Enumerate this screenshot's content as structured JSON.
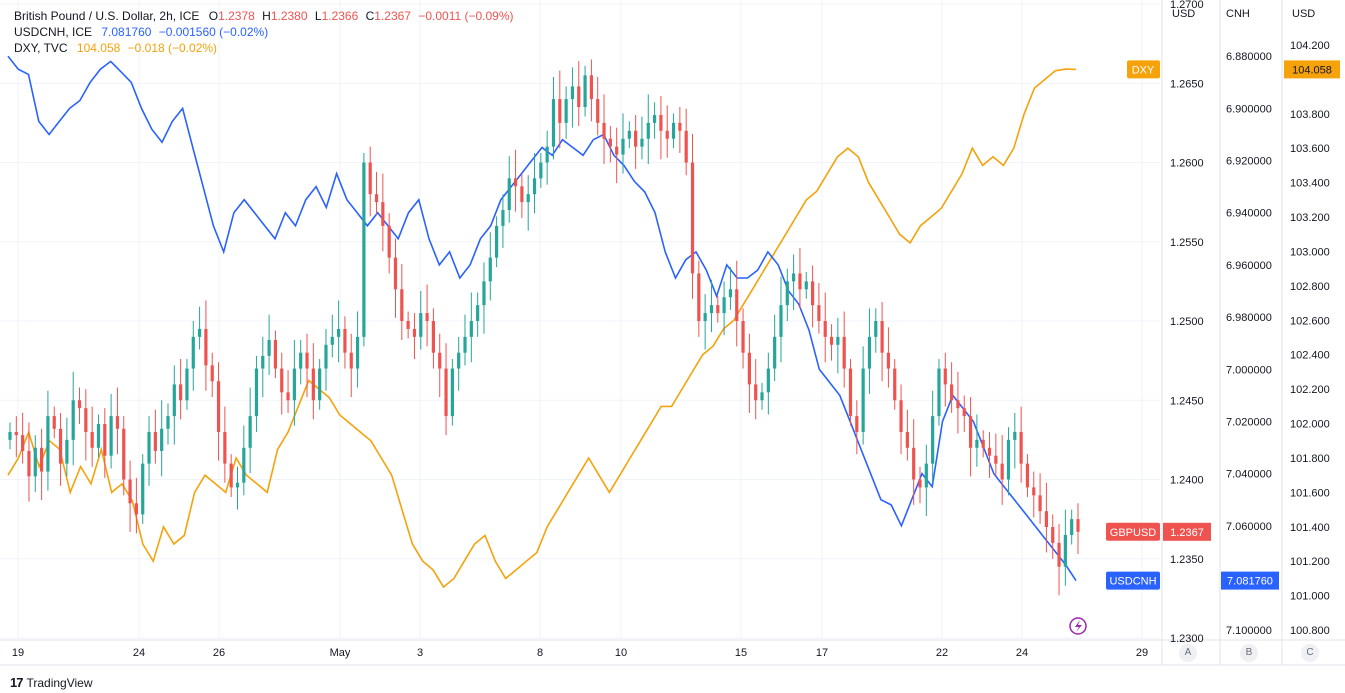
{
  "legend": [
    {
      "name": "British Pound / U.S. Dollar, 2h, ICE",
      "parts": [
        [
          "O",
          "1.2378"
        ],
        [
          "H",
          "1.2380"
        ],
        [
          "L",
          "1.2366"
        ],
        [
          "C",
          "1.2367"
        ],
        [
          "",
          "−0.0011 (−0.09%)"
        ]
      ],
      "color": "#ef5350"
    },
    {
      "name": "USDCNH, ICE",
      "parts": [
        [
          "",
          "7.081760"
        ],
        [
          "",
          "−0.001560 (−0.02%)"
        ]
      ],
      "color": "#2962ff"
    },
    {
      "name": "DXY, TVC",
      "parts": [
        [
          "",
          "104.058"
        ],
        [
          "",
          "−0.018 (−0.02%)"
        ]
      ],
      "color": "#f5a20b"
    }
  ],
  "scales": {
    "gbpusd_label": "USD",
    "cnh_label": "CNH",
    "dxy_label": "USD",
    "foot_a": "A",
    "foot_b": "B",
    "foot_c": "C"
  },
  "footer": {
    "logo": "17",
    "brand": "TradingView"
  },
  "colors": {
    "up": "#26a69a",
    "down": "#ef5350",
    "usdcnh": "#2962ff",
    "dxy": "#f5a20b",
    "grid": "#f0f3fa"
  },
  "chart_data": {
    "type": "line",
    "x_ticks": [
      "19",
      "24",
      "26",
      "May",
      "3",
      "8",
      "10",
      "15",
      "17",
      "22",
      "24",
      "29"
    ],
    "gbpusd": {
      "name": "GBPUSD",
      "type": "candlestick",
      "scale_ticks": [
        "1.2700",
        "1.2650",
        "1.2600",
        "1.2550",
        "1.2500",
        "1.2450",
        "1.2400",
        "1.2350",
        "1.2300"
      ],
      "ylim": [
        1.23,
        1.27
      ],
      "last": "1.2367",
      "close": [
        1.243,
        1.2428,
        1.2418,
        1.2402,
        1.242,
        1.2405,
        1.244,
        1.2432,
        1.241,
        1.2425,
        1.245,
        1.2445,
        1.243,
        1.242,
        1.2435,
        1.2415,
        1.244,
        1.2432,
        1.24,
        1.2385,
        1.2378,
        1.241,
        1.243,
        1.2418,
        1.2432,
        1.244,
        1.246,
        1.245,
        1.247,
        1.249,
        1.2495,
        1.2472,
        1.2462,
        1.243,
        1.241,
        1.2395,
        1.2398,
        1.242,
        1.244,
        1.247,
        1.2478,
        1.2488,
        1.247,
        1.2455,
        1.245,
        1.247,
        1.248,
        1.247,
        1.245,
        1.247,
        1.2485,
        1.249,
        1.2495,
        1.248,
        1.247,
        1.249,
        1.26,
        1.258,
        1.2575,
        1.256,
        1.254,
        1.252,
        1.25,
        1.2495,
        1.249,
        1.2505,
        1.25,
        1.248,
        1.247,
        1.244,
        1.247,
        1.248,
        1.249,
        1.25,
        1.251,
        1.2525,
        1.254,
        1.256,
        1.257,
        1.259,
        1.2585,
        1.2575,
        1.258,
        1.259,
        1.26,
        1.261,
        1.264,
        1.2625,
        1.264,
        1.2648,
        1.2635,
        1.2655,
        1.264,
        1.2625,
        1.2615,
        1.261,
        1.2605,
        1.2615,
        1.262,
        1.261,
        1.2615,
        1.2625,
        1.263,
        1.262,
        1.2615,
        1.2625,
        1.262,
        1.26,
        1.253,
        1.25,
        1.2505,
        1.251,
        1.2505,
        1.2515,
        1.252,
        1.25,
        1.248,
        1.246,
        1.245,
        1.2455,
        1.247,
        1.249,
        1.251,
        1.2525,
        1.253,
        1.252,
        1.2525,
        1.251,
        1.25,
        1.249,
        1.2485,
        1.249,
        1.247,
        1.244,
        1.243,
        1.247,
        1.249,
        1.25,
        1.248,
        1.247,
        1.245,
        1.243,
        1.242,
        1.24,
        1.2395,
        1.241,
        1.244,
        1.247,
        1.246,
        1.245,
        1.2445,
        1.244,
        1.242,
        1.2425,
        1.242,
        1.2415,
        1.241,
        1.24,
        1.2425,
        1.243,
        1.241,
        1.2395,
        1.239,
        1.238,
        1.237,
        1.236,
        1.2345,
        1.2365,
        1.2375,
        1.2367
      ]
    },
    "usdcnh": {
      "name": "USDCNH",
      "scale_ticks": [
        "6.880000",
        "6.900000",
        "6.920000",
        "6.940000",
        "6.960000",
        "6.980000",
        "7.000000",
        "7.020000",
        "7.040000",
        "7.060000",
        "7.080000",
        "7.100000"
      ],
      "ylim": [
        6.86,
        7.103
      ],
      "last": "7.081760",
      "values": [
        6.88,
        6.885,
        6.887,
        6.905,
        6.91,
        6.905,
        6.9,
        6.897,
        6.89,
        6.885,
        6.882,
        6.886,
        6.89,
        6.9,
        6.908,
        6.913,
        6.905,
        6.9,
        6.915,
        6.93,
        6.945,
        6.955,
        6.94,
        6.935,
        6.94,
        6.945,
        6.95,
        6.94,
        6.945,
        6.935,
        6.93,
        6.938,
        6.925,
        6.935,
        6.94,
        6.945,
        6.94,
        6.945,
        6.95,
        6.94,
        6.935,
        6.95,
        6.96,
        6.955,
        6.965,
        6.96,
        6.95,
        6.945,
        6.935,
        6.93,
        6.925,
        6.92,
        6.915,
        6.918,
        6.912,
        6.915,
        6.918,
        6.912,
        6.91,
        6.918,
        6.922,
        6.928,
        6.932,
        6.94,
        6.955,
        6.965,
        6.958,
        6.955,
        6.962,
        6.972,
        6.96,
        6.965,
        6.965,
        6.962,
        6.955,
        6.96,
        6.97,
        6.975,
        6.985,
        7.0,
        7.005,
        7.01,
        7.02,
        7.03,
        7.04,
        7.05,
        7.052,
        7.06,
        7.05,
        7.04,
        7.045,
        7.02,
        7.01,
        7.015,
        7.02,
        7.03,
        7.04,
        7.045,
        7.05,
        7.055,
        7.06,
        7.065,
        7.07,
        7.075,
        7.081
      ],
      "x_start": 8,
      "x_end": 1076
    },
    "dxy": {
      "name": "DXY",
      "scale_ticks": [
        "104.200",
        "104.058",
        "103.800",
        "103.600",
        "103.400",
        "103.200",
        "103.000",
        "102.800",
        "102.600",
        "102.400",
        "102.200",
        "102.000",
        "101.800",
        "101.600",
        "101.400",
        "101.200",
        "101.000",
        "100.800"
      ],
      "ylim": [
        100.754,
        104.438
      ],
      "last": "104.058",
      "values": [
        101.7,
        101.8,
        101.95,
        101.75,
        101.9,
        101.85,
        101.6,
        101.75,
        101.65,
        101.85,
        101.6,
        101.65,
        101.55,
        101.3,
        101.2,
        101.4,
        101.3,
        101.35,
        101.6,
        101.7,
        101.65,
        101.6,
        101.8,
        101.7,
        101.65,
        101.6,
        101.85,
        101.95,
        102.1,
        102.25,
        102.2,
        102.15,
        102.05,
        102.0,
        101.95,
        101.9,
        101.8,
        101.7,
        101.5,
        101.3,
        101.2,
        101.15,
        101.05,
        101.1,
        101.2,
        101.3,
        101.35,
        101.2,
        101.1,
        101.15,
        101.2,
        101.25,
        101.4,
        101.5,
        101.6,
        101.7,
        101.8,
        101.7,
        101.6,
        101.7,
        101.8,
        101.9,
        102.0,
        102.1,
        102.1,
        102.2,
        102.3,
        102.4,
        102.45,
        102.55,
        102.6,
        102.7,
        102.8,
        102.9,
        103.0,
        103.1,
        103.2,
        103.3,
        103.35,
        103.45,
        103.55,
        103.6,
        103.55,
        103.4,
        103.3,
        103.2,
        103.1,
        103.05,
        103.15,
        103.2,
        103.25,
        103.35,
        103.45,
        103.6,
        103.5,
        103.55,
        103.5,
        103.6,
        103.8,
        103.95,
        104.0,
        104.05,
        104.06,
        104.058
      ],
      "x_start": 8,
      "x_end": 1076
    },
    "price_labels": {
      "gbpusd": "GBPUSD",
      "usdcnh": "USDCNH",
      "dxy": "DXY"
    }
  }
}
